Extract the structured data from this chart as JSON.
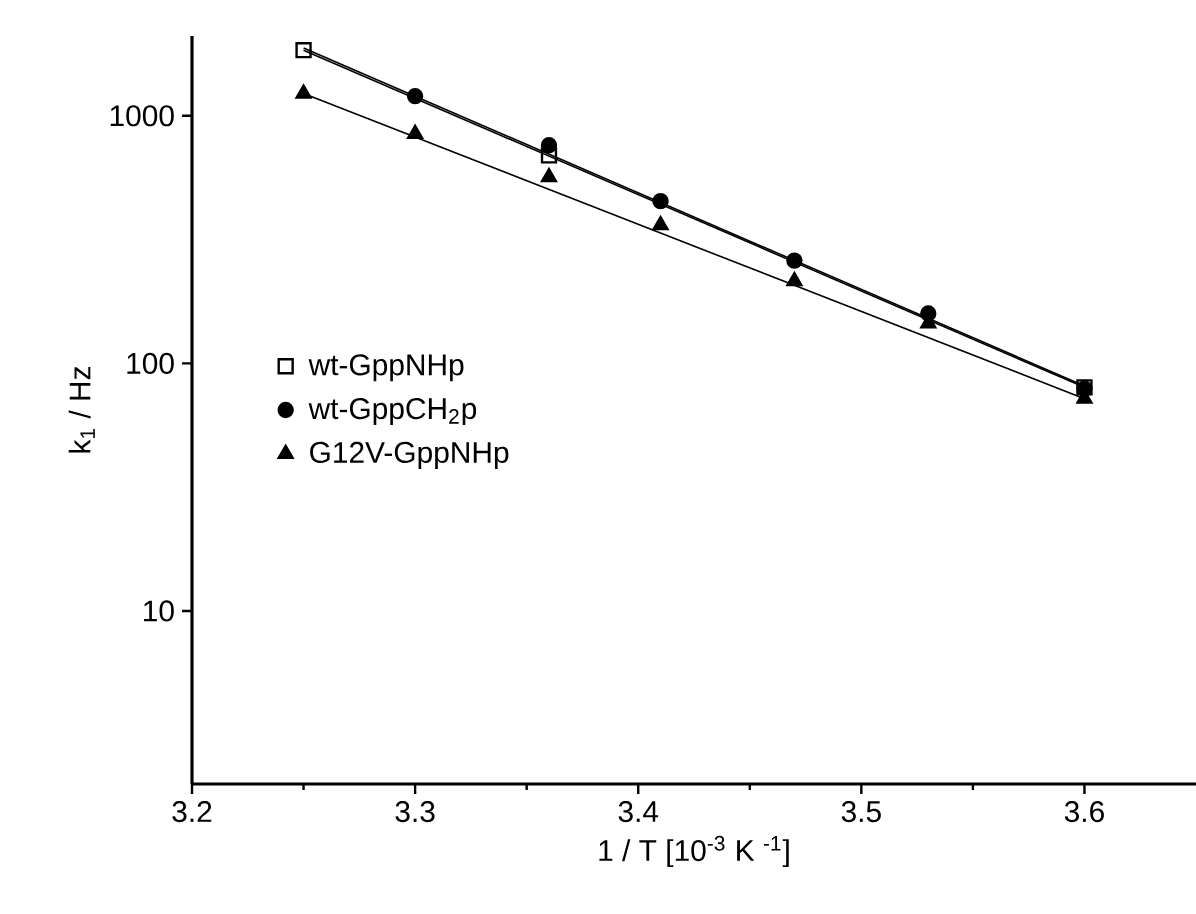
{
  "chart_data": {
    "type": "scatter",
    "xlabel": "1 / T [10$^{-3}$ K $^{-1}$]",
    "ylabel": "k$_{1}$ / Hz",
    "log": "y",
    "xlim": [
      3.2,
      3.65
    ],
    "xticks": [
      3.2,
      3.3,
      3.4,
      3.5,
      3.6
    ],
    "ylim": [
      2,
      2100
    ],
    "yticks": [
      10,
      100,
      1000
    ],
    "legend": "left",
    "grid": false,
    "series": [
      {
        "name": "wt-GppNHp",
        "color": "#000000",
        "marker": "square",
        "x": [
          3.25,
          3.36,
          3.6
        ],
        "values": [
          1840,
          692,
          80
        ]
      },
      {
        "name": "wt-GppCH$_{2}$p",
        "color": "#000000",
        "marker": "circle",
        "x": [
          3.3,
          3.36,
          3.41,
          3.47,
          3.53,
          3.6
        ],
        "values": [
          1200,
          760,
          452,
          260,
          159,
          79
        ]
      },
      {
        "name": "G12V-GppNHp",
        "color": "#000000",
        "marker": "triangle",
        "x": [
          3.25,
          3.3,
          3.36,
          3.41,
          3.47,
          3.53,
          3.6
        ],
        "values": [
          1230,
          846,
          565,
          362,
          215,
          145,
          72
        ]
      },
      {
        "type": "line",
        "color": "#000000",
        "marker": "none",
        "x": [
          3.25,
          3.6
        ],
        "values": [
          1840,
          80
        ]
      },
      {
        "type": "line",
        "color": "#000000",
        "marker": "none",
        "x": [
          3.25,
          3.6
        ],
        "values": [
          1880,
          81
        ]
      },
      {
        "type": "line",
        "color": "#000000",
        "marker": "none",
        "x": [
          3.25,
          3.6
        ],
        "values": [
          1230,
          72
        ]
      }
    ]
  }
}
